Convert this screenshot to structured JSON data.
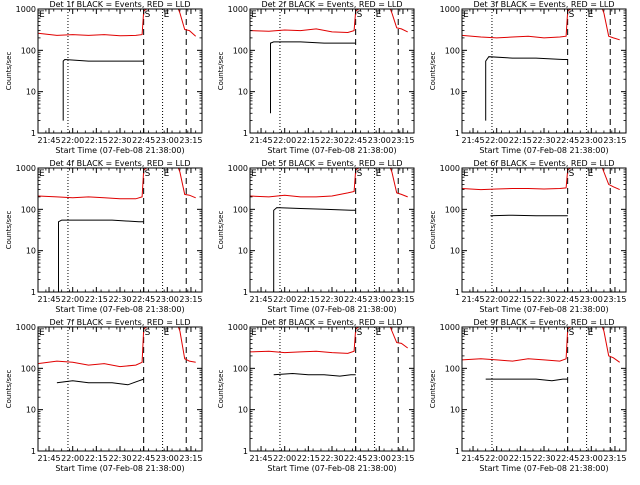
{
  "figure": {
    "y_ticks": [
      1,
      10,
      100,
      1000
    ],
    "y_tick_labels": [
      "1",
      "10",
      "100",
      "1000"
    ],
    "x_ticks": [
      "21:45",
      "22:00",
      "22:15",
      "22:30",
      "22:45",
      "23:00",
      "23:15"
    ],
    "x_range": [
      "21:38",
      "23:22"
    ],
    "colors": {
      "events": "#000000",
      "lld": "#e00000",
      "axes": "#000000"
    }
  },
  "chart_data": [
    {
      "type": "line",
      "title": "Det 1f BLACK = Events, RED = LLD",
      "xlabel": "Start Time (07-Feb-08 21:38:00)",
      "ylabel": "Counts/sec",
      "ylim": [
        1,
        1000
      ],
      "yscale": "log",
      "markers": [
        {
          "label": "E",
          "time": "21:38",
          "style": "none"
        },
        {
          "label": "",
          "time": "21:57",
          "style": "dotted"
        },
        {
          "label": "S",
          "time": "22:45",
          "style": "dashed"
        },
        {
          "label": "E",
          "time": "22:57",
          "style": "dotted"
        },
        {
          "label": "",
          "time": "23:12",
          "style": "dashed"
        }
      ],
      "series": [
        {
          "name": "Events",
          "color": "#000000",
          "x": [
            "21:54",
            "21:54",
            "21:55",
            "22:10",
            "22:25",
            "22:42",
            "22:45"
          ],
          "y": [
            2,
            55,
            60,
            55,
            55,
            55,
            55
          ]
        },
        {
          "name": "LLD",
          "color": "#e00000",
          "x": [
            "21:38",
            "21:50",
            "22:00",
            "22:10",
            "22:20",
            "22:30",
            "22:40",
            "22:44",
            "22:45",
            "22:47",
            "23:07",
            "23:08",
            "23:11",
            "23:14",
            "23:18"
          ],
          "y": [
            260,
            230,
            240,
            230,
            240,
            225,
            230,
            240,
            900,
            1000,
            1000,
            800,
            320,
            300,
            220
          ]
        }
      ]
    },
    {
      "type": "line",
      "title": "Det 2f BLACK = Events, RED = LLD",
      "xlabel": "Start Time (07-Feb-08 21:38:00)",
      "ylabel": "Counts/sec",
      "ylim": [
        1,
        1000
      ],
      "yscale": "log",
      "markers": [
        {
          "label": "E",
          "time": "21:38",
          "style": "none"
        },
        {
          "label": "",
          "time": "21:57",
          "style": "dotted"
        },
        {
          "label": "S",
          "time": "22:45",
          "style": "dashed"
        },
        {
          "label": "E",
          "time": "22:57",
          "style": "dotted"
        },
        {
          "label": "",
          "time": "23:12",
          "style": "dashed"
        }
      ],
      "series": [
        {
          "name": "Events",
          "color": "#000000",
          "x": [
            "21:51",
            "21:51",
            "21:53",
            "22:10",
            "22:25",
            "22:42",
            "22:45"
          ],
          "y": [
            3,
            150,
            160,
            160,
            150,
            150,
            150
          ]
        },
        {
          "name": "LLD",
          "color": "#e00000",
          "x": [
            "21:38",
            "21:50",
            "22:00",
            "22:10",
            "22:20",
            "22:30",
            "22:40",
            "22:44",
            "22:45",
            "22:47",
            "23:07",
            "23:08",
            "23:11",
            "23:14",
            "23:18"
          ],
          "y": [
            300,
            290,
            310,
            300,
            330,
            280,
            270,
            300,
            900,
            1000,
            1000,
            800,
            350,
            330,
            280
          ]
        }
      ]
    },
    {
      "type": "line",
      "title": "Det 3f BLACK = Events, RED = LLD",
      "xlabel": "Start Time (07-Feb-08 21:38:00)",
      "ylabel": "Counts/sec",
      "ylim": [
        1,
        1000
      ],
      "yscale": "log",
      "markers": [
        {
          "label": "E",
          "time": "21:38",
          "style": "none"
        },
        {
          "label": "",
          "time": "21:57",
          "style": "dotted"
        },
        {
          "label": "S",
          "time": "22:45",
          "style": "dashed"
        },
        {
          "label": "E",
          "time": "22:57",
          "style": "dotted"
        },
        {
          "label": "",
          "time": "23:12",
          "style": "dashed"
        }
      ],
      "series": [
        {
          "name": "Events",
          "color": "#000000",
          "x": [
            "21:53",
            "21:53",
            "21:55",
            "22:10",
            "22:25",
            "22:42",
            "22:45"
          ],
          "y": [
            2,
            55,
            70,
            65,
            65,
            60,
            60
          ]
        },
        {
          "name": "LLD",
          "color": "#e00000",
          "x": [
            "21:38",
            "21:50",
            "22:00",
            "22:10",
            "22:20",
            "22:30",
            "22:40",
            "22:44",
            "22:45",
            "22:47",
            "23:07",
            "23:08",
            "23:11",
            "23:14",
            "23:18"
          ],
          "y": [
            230,
            210,
            200,
            210,
            220,
            200,
            210,
            220,
            900,
            1000,
            1000,
            800,
            220,
            200,
            180
          ]
        }
      ]
    },
    {
      "type": "line",
      "title": "Det 4f BLACK = Events, RED = LLD",
      "xlabel": "Start Time (07-Feb-08 21:38:00)",
      "ylabel": "Counts/sec",
      "ylim": [
        1,
        1000
      ],
      "yscale": "log",
      "markers": [
        {
          "label": "E",
          "time": "21:38",
          "style": "none"
        },
        {
          "label": "",
          "time": "21:57",
          "style": "dotted"
        },
        {
          "label": "S",
          "time": "22:45",
          "style": "dashed"
        },
        {
          "label": "E",
          "time": "22:57",
          "style": "dotted"
        },
        {
          "label": "",
          "time": "23:12",
          "style": "dashed"
        }
      ],
      "series": [
        {
          "name": "Events",
          "color": "#000000",
          "x": [
            "21:51",
            "21:51",
            "21:53",
            "22:10",
            "22:25",
            "22:42",
            "22:45"
          ],
          "y": [
            1,
            50,
            55,
            55,
            55,
            50,
            50
          ]
        },
        {
          "name": "LLD",
          "color": "#e00000",
          "x": [
            "21:38",
            "21:50",
            "22:00",
            "22:10",
            "22:20",
            "22:30",
            "22:40",
            "22:44",
            "22:45",
            "22:47",
            "23:07",
            "23:08",
            "23:11",
            "23:14",
            "23:18"
          ],
          "y": [
            210,
            200,
            190,
            200,
            190,
            180,
            180,
            200,
            900,
            1000,
            1000,
            800,
            230,
            220,
            190
          ]
        }
      ]
    },
    {
      "type": "line",
      "title": "Det 5f BLACK = Events, RED = LLD",
      "xlabel": "Start Time (07-Feb-08 21:38:00)",
      "ylabel": "Counts/sec",
      "ylim": [
        1,
        1000
      ],
      "yscale": "log",
      "markers": [
        {
          "label": "E",
          "time": "21:38",
          "style": "none"
        },
        {
          "label": "",
          "time": "21:57",
          "style": "dotted"
        },
        {
          "label": "S",
          "time": "22:45",
          "style": "dashed"
        },
        {
          "label": "E",
          "time": "22:57",
          "style": "dotted"
        },
        {
          "label": "",
          "time": "23:12",
          "style": "dashed"
        }
      ],
      "series": [
        {
          "name": "Events",
          "color": "#000000",
          "x": [
            "21:53",
            "21:53",
            "21:55",
            "22:10",
            "22:25",
            "22:42",
            "22:45"
          ],
          "y": [
            1,
            95,
            110,
            105,
            100,
            95,
            95
          ]
        },
        {
          "name": "LLD",
          "color": "#e00000",
          "x": [
            "21:38",
            "21:50",
            "22:00",
            "22:10",
            "22:20",
            "22:30",
            "22:40",
            "22:44",
            "22:45",
            "22:47",
            "23:07",
            "23:08",
            "23:11",
            "23:14",
            "23:18"
          ],
          "y": [
            210,
            200,
            220,
            200,
            200,
            210,
            250,
            270,
            900,
            1000,
            1000,
            800,
            250,
            230,
            200
          ]
        }
      ]
    },
    {
      "type": "line",
      "title": "Det 6f BLACK = Events, RED = LLD",
      "xlabel": "Start Time (07-Feb-08 21:38:00)",
      "ylabel": "Counts/sec",
      "ylim": [
        1,
        1000
      ],
      "yscale": "log",
      "markers": [
        {
          "label": "E",
          "time": "21:38",
          "style": "none"
        },
        {
          "label": "",
          "time": "21:57",
          "style": "dotted"
        },
        {
          "label": "S",
          "time": "22:45",
          "style": "dashed"
        },
        {
          "label": "E",
          "time": "22:57",
          "style": "dotted"
        },
        {
          "label": "",
          "time": "23:12",
          "style": "dashed"
        }
      ],
      "series": [
        {
          "name": "Events",
          "color": "#000000",
          "x": [
            "21:56",
            "22:10",
            "22:25",
            "22:42",
            "22:45"
          ],
          "y": [
            70,
            72,
            70,
            70,
            70
          ]
        },
        {
          "name": "LLD",
          "color": "#e00000",
          "x": [
            "21:38",
            "21:50",
            "22:00",
            "22:10",
            "22:20",
            "22:30",
            "22:40",
            "22:44",
            "22:45",
            "22:47",
            "23:07",
            "23:08",
            "23:11",
            "23:14",
            "23:18"
          ],
          "y": [
            320,
            300,
            310,
            320,
            320,
            310,
            320,
            330,
            900,
            1000,
            1000,
            800,
            400,
            350,
            300
          ]
        }
      ]
    },
    {
      "type": "line",
      "title": "Det 7f BLACK = Events, RED = LLD",
      "xlabel": "Start Time (07-Feb-08 21:38:00)",
      "ylabel": "Counts/sec",
      "ylim": [
        1,
        1000
      ],
      "yscale": "log",
      "markers": [
        {
          "label": "E",
          "time": "21:38",
          "style": "none"
        },
        {
          "label": "",
          "time": "21:57",
          "style": "dotted"
        },
        {
          "label": "S",
          "time": "22:45",
          "style": "dashed"
        },
        {
          "label": "E",
          "time": "22:57",
          "style": "dotted"
        },
        {
          "label": "",
          "time": "23:12",
          "style": "dashed"
        }
      ],
      "series": [
        {
          "name": "Events",
          "color": "#000000",
          "x": [
            "21:50",
            "22:00",
            "22:10",
            "22:25",
            "22:35",
            "22:42",
            "22:45"
          ],
          "y": [
            45,
            50,
            45,
            45,
            40,
            50,
            55
          ]
        },
        {
          "name": "LLD",
          "color": "#e00000",
          "x": [
            "21:38",
            "21:50",
            "22:00",
            "22:10",
            "22:20",
            "22:30",
            "22:40",
            "22:44",
            "22:45",
            "22:47",
            "23:07",
            "23:08",
            "23:11",
            "23:14",
            "23:18"
          ],
          "y": [
            130,
            150,
            140,
            120,
            130,
            110,
            120,
            140,
            900,
            1000,
            1000,
            800,
            170,
            150,
            140
          ]
        }
      ]
    },
    {
      "type": "line",
      "title": "Det 8f BLACK = Events, RED = LLD",
      "xlabel": "Start Time (07-Feb-08 21:38:00)",
      "ylabel": "Counts/sec",
      "ylim": [
        1,
        1000
      ],
      "yscale": "log",
      "markers": [
        {
          "label": "E",
          "time": "21:38",
          "style": "none"
        },
        {
          "label": "",
          "time": "21:57",
          "style": "dotted"
        },
        {
          "label": "S",
          "time": "22:45",
          "style": "dashed"
        },
        {
          "label": "E",
          "time": "22:57",
          "style": "dotted"
        },
        {
          "label": "",
          "time": "23:12",
          "style": "dashed"
        }
      ],
      "series": [
        {
          "name": "Events",
          "color": "#000000",
          "x": [
            "21:53",
            "22:05",
            "22:15",
            "22:25",
            "22:35",
            "22:42",
            "22:45"
          ],
          "y": [
            70,
            75,
            70,
            70,
            65,
            70,
            70
          ]
        },
        {
          "name": "LLD",
          "color": "#e00000",
          "x": [
            "21:38",
            "21:50",
            "22:00",
            "22:10",
            "22:20",
            "22:30",
            "22:40",
            "22:44",
            "22:45",
            "22:47",
            "23:07",
            "23:08",
            "23:11",
            "23:14",
            "23:18"
          ],
          "y": [
            250,
            260,
            240,
            250,
            260,
            240,
            230,
            260,
            900,
            1000,
            1000,
            800,
            420,
            400,
            310
          ]
        }
      ]
    },
    {
      "type": "line",
      "title": "Det 9f BLACK = Events, RED = LLD",
      "xlabel": "Start Time (07-Feb-08 21:38:00)",
      "ylabel": "Counts/sec",
      "ylim": [
        1,
        1000
      ],
      "yscale": "log",
      "markers": [
        {
          "label": "E",
          "time": "21:38",
          "style": "none"
        },
        {
          "label": "",
          "time": "21:57",
          "style": "dotted"
        },
        {
          "label": "S",
          "time": "22:45",
          "style": "dashed"
        },
        {
          "label": "E",
          "time": "22:57",
          "style": "dotted"
        },
        {
          "label": "",
          "time": "23:12",
          "style": "dashed"
        }
      ],
      "series": [
        {
          "name": "Events",
          "color": "#000000",
          "x": [
            "21:53",
            "22:05",
            "22:15",
            "22:25",
            "22:35",
            "22:42",
            "22:45"
          ],
          "y": [
            55,
            55,
            55,
            55,
            50,
            55,
            55
          ]
        },
        {
          "name": "LLD",
          "color": "#e00000",
          "x": [
            "21:38",
            "21:50",
            "22:00",
            "22:10",
            "22:20",
            "22:30",
            "22:40",
            "22:44",
            "22:45",
            "22:47",
            "23:07",
            "23:08",
            "23:11",
            "23:14",
            "23:18"
          ],
          "y": [
            160,
            170,
            160,
            150,
            170,
            160,
            150,
            170,
            900,
            1000,
            1000,
            800,
            200,
            180,
            140
          ]
        }
      ]
    }
  ]
}
